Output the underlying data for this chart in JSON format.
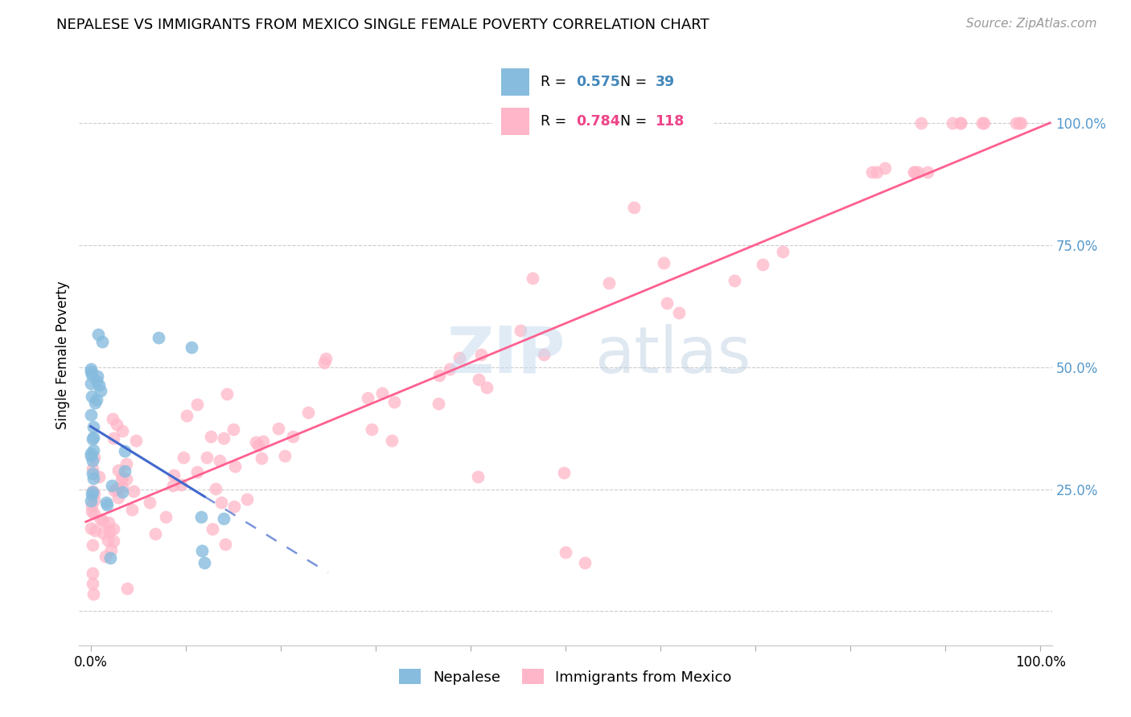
{
  "title": "NEPALESE VS IMMIGRANTS FROM MEXICO SINGLE FEMALE POVERTY CORRELATION CHART",
  "source": "Source: ZipAtlas.com",
  "ylabel": "Single Female Poverty",
  "legend_blue_R": "0.575",
  "legend_blue_N": "39",
  "legend_pink_R": "0.784",
  "legend_pink_N": "118",
  "legend_label_blue": "Nepalese",
  "legend_label_pink": "Immigrants from Mexico",
  "blue_scatter_color": "#87BCDE",
  "pink_scatter_color": "#FFB6C8",
  "blue_line_color": "#4169CD",
  "pink_line_color": "#FF6090",
  "right_tick_color": "#5599CC",
  "grid_color": "#CCCCCC",
  "watermark_zip_color": "#C8DCF0",
  "watermark_atlas_color": "#B8CCE0",
  "right_ytick_labels": [
    "100.0%",
    "75.0%",
    "50.0%",
    "25.0%"
  ],
  "right_ytick_values": [
    1.0,
    0.75,
    0.5,
    0.25
  ]
}
